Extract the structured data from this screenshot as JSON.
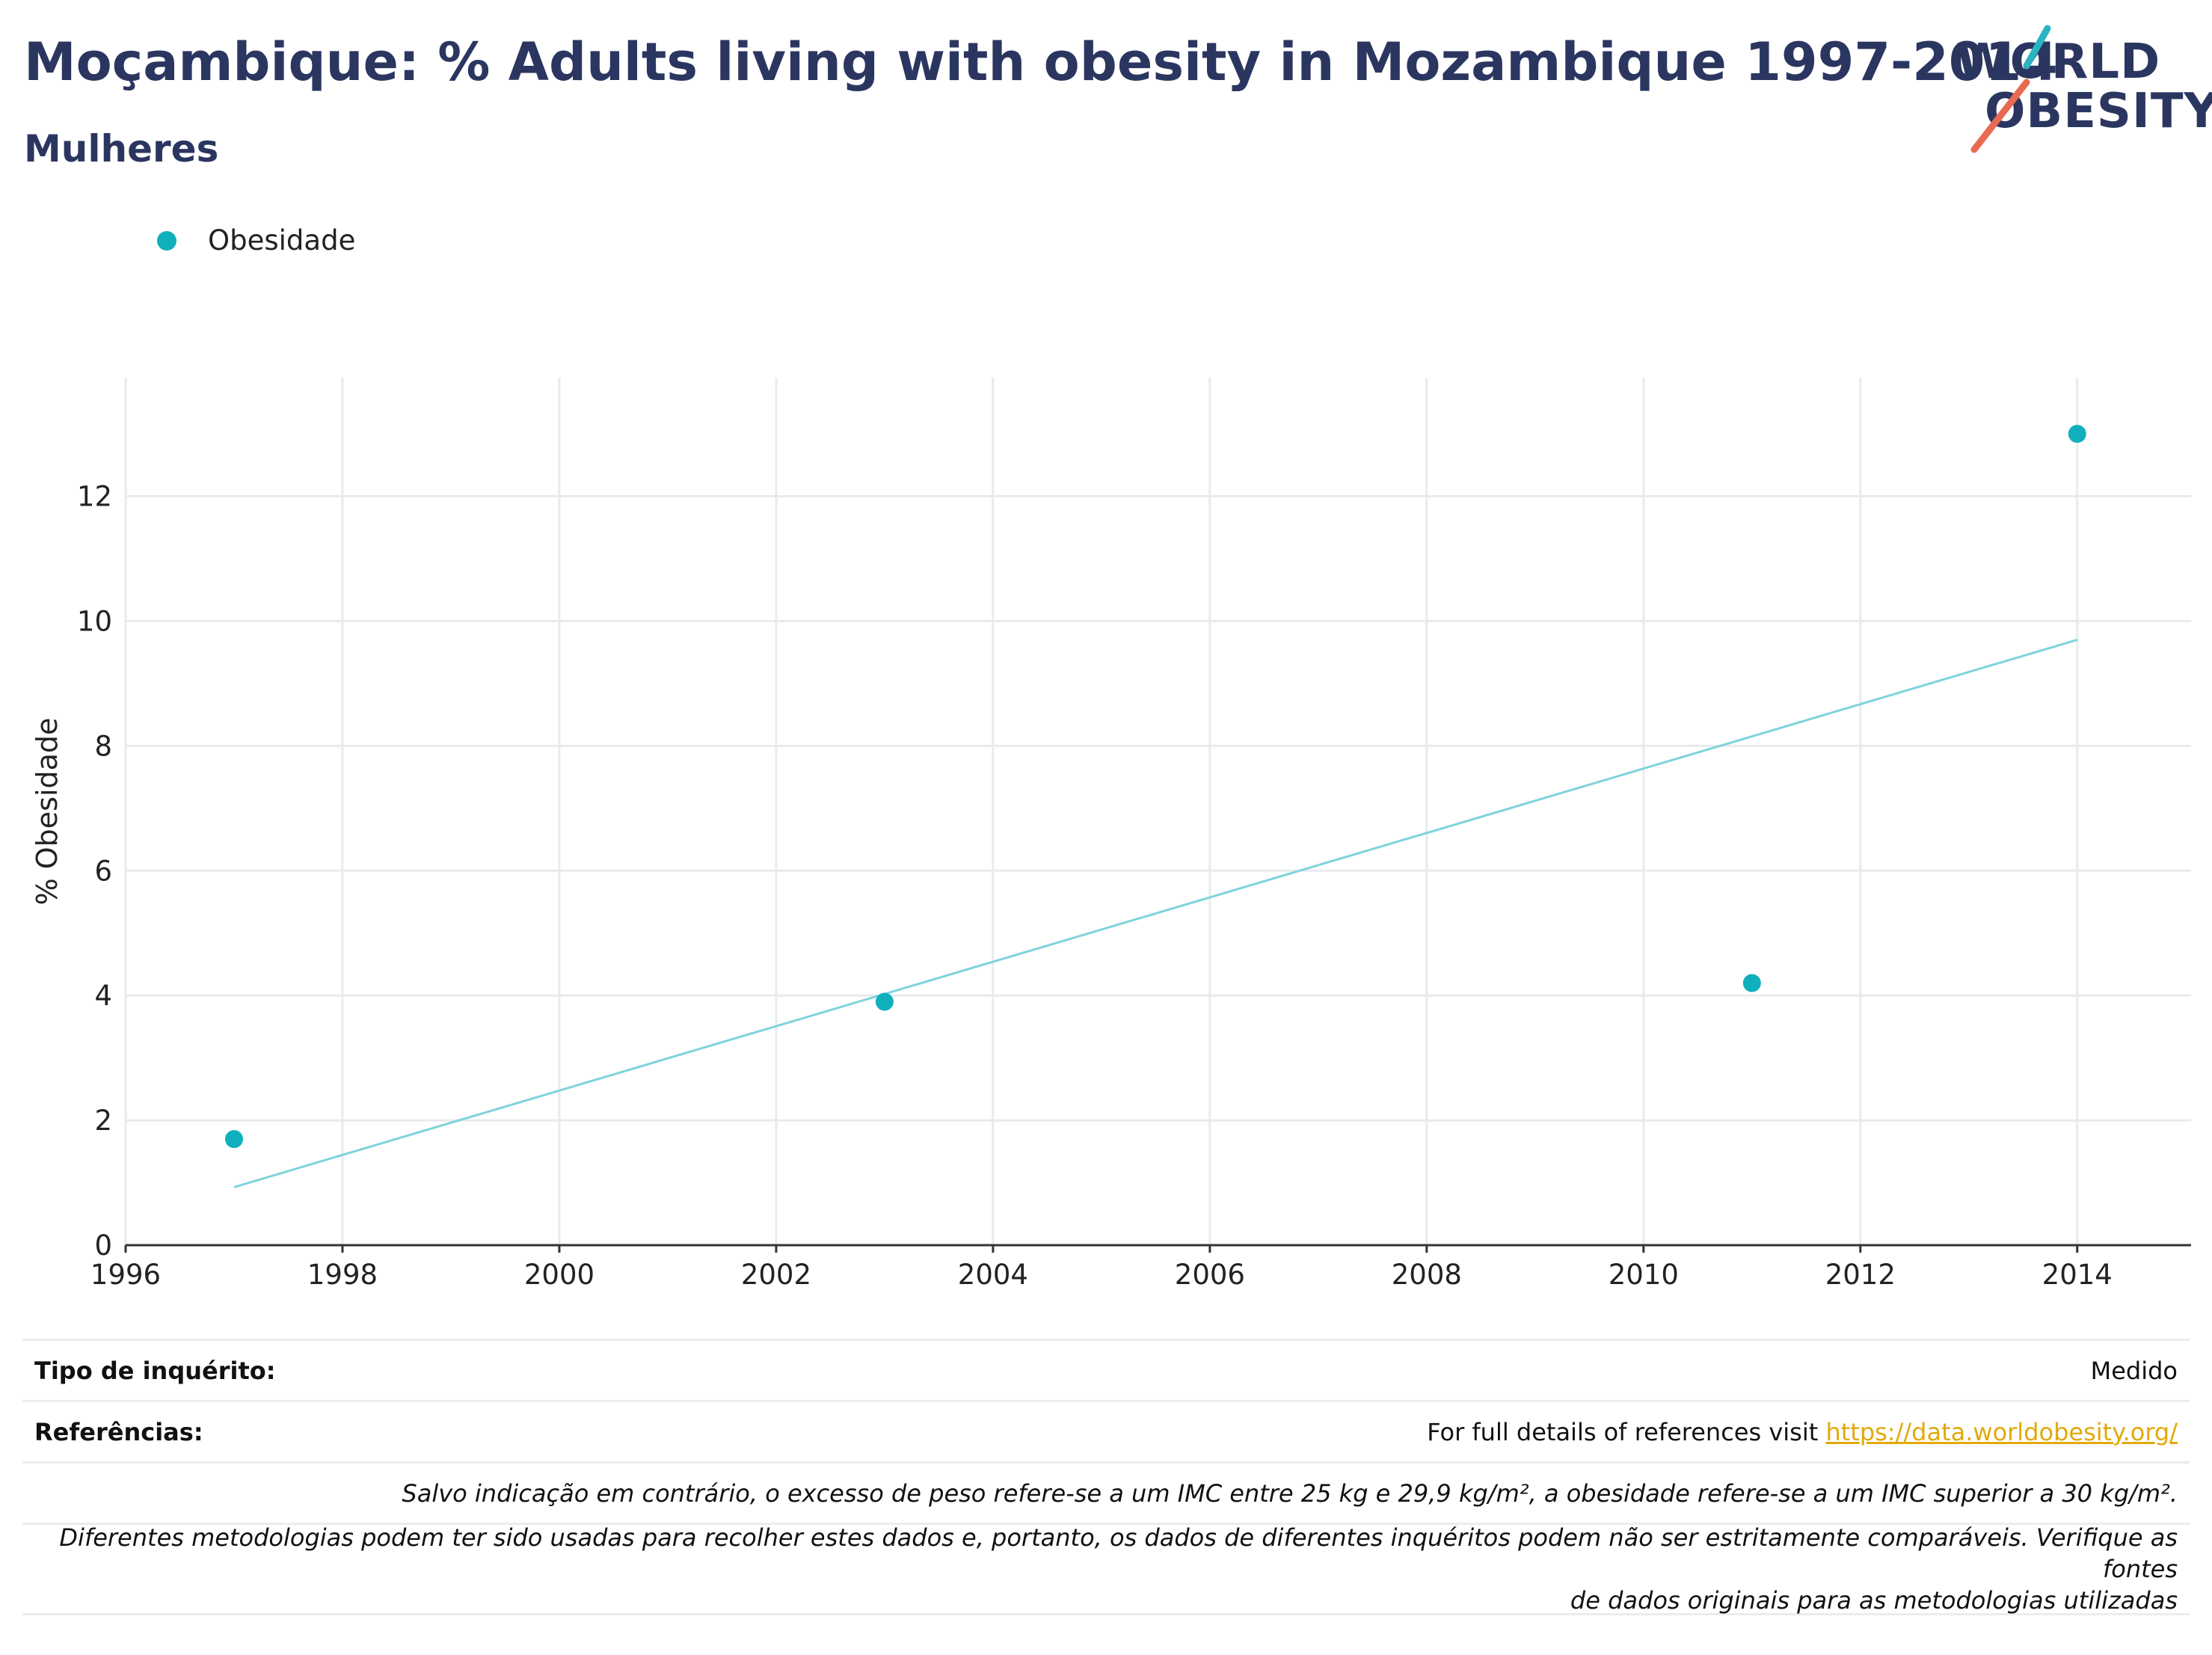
{
  "header": {
    "title": "Moçambique: % Adults living with obesity in Mozambique 1997-2014",
    "subtitle": "Mulheres"
  },
  "logo": {
    "line1": "WORLD",
    "line2": "OBESITY"
  },
  "colors": {
    "accent": "#0fb0bc",
    "trend": "#7fd3dc",
    "title": "#2b3660",
    "link": "#e2a90a"
  },
  "chart_data": {
    "type": "scatter",
    "series": [
      {
        "name": "Obesidade",
        "x": [
          1997,
          2003,
          2011,
          2014
        ],
        "y": [
          1.7,
          3.9,
          4.2,
          13.0
        ]
      }
    ],
    "trendline": {
      "x": [
        1997,
        2014
      ],
      "y": [
        0.93,
        9.7
      ]
    },
    "xlim": [
      1996,
      2015.05
    ],
    "ylim": [
      0,
      13.9
    ],
    "xticks": [
      1996,
      1998,
      2000,
      2002,
      2004,
      2006,
      2008,
      2010,
      2012,
      2014
    ],
    "yticks": [
      0,
      2,
      4,
      6,
      8,
      10,
      12
    ],
    "ylabel": "% Obesidade",
    "xlabel": "",
    "grid": true,
    "legend_position": "top-left"
  },
  "info": {
    "survey_type_key": "Tipo de inquérito:",
    "survey_type_val": "Medido",
    "references_key": "Referências:",
    "references_text": "For full details of references visit ",
    "references_link": "https://data.worldobesity.org/",
    "note1": "Salvo indicação em contrário, o excesso de peso refere-se a um IMC entre 25 kg e 29,9 kg/m², a obesidade refere-se a um IMC superior a 30 kg/m².",
    "note2a": "Diferentes metodologias podem ter sido usadas para recolher estes dados e, portanto, os dados de diferentes inquéritos podem não ser estritamente comparáveis. Verifique as fontes",
    "note2b": "de dados originais para as metodologias utilizadas"
  }
}
